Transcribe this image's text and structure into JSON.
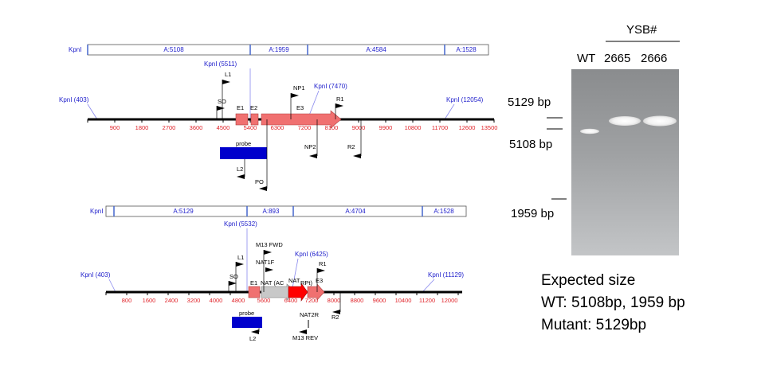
{
  "map1": {
    "enzyme_label": "KpnI",
    "fragments": [
      "A:5108",
      "A:1959",
      "A:4584",
      "A:1528"
    ],
    "site_left": "KpnI (403)",
    "site_a": "KpnI (5511)",
    "site_b": "KpnI (7470)",
    "site_right": "KpnI (12054)",
    "ticks": [
      "900",
      "1800",
      "2700",
      "3600",
      "4500",
      "5400",
      "6300",
      "7200",
      "8100",
      "9000",
      "9900",
      "10800",
      "11700",
      "12600",
      "13500"
    ],
    "features": [
      "E1",
      "E2",
      "E3"
    ],
    "probe": "probe",
    "primers": [
      "L1",
      "SO",
      "NP1",
      "R1",
      "NP2",
      "R2",
      "L2",
      "PO"
    ]
  },
  "map2": {
    "enzyme_label": "KpnI",
    "fragments": [
      "A:5129",
      "A:893",
      "A:4704",
      "A:1528"
    ],
    "site_left": "KpnI (403)",
    "site_a": "KpnI (5532)",
    "site_b": "KpnI (6425)",
    "site_right": "KpnI (11129)",
    "ticks": [
      "800",
      "1600",
      "2400",
      "3200",
      "4000",
      "4800",
      "5600",
      "6400",
      "7200",
      "8000",
      "8800",
      "9600",
      "10400",
      "11200",
      "12000"
    ],
    "features": [
      "E1",
      "NAT (AC",
      "NAT",
      "RPt)",
      "E3"
    ],
    "probe": "probe",
    "primers": [
      "M13 FWD",
      "NAT1F",
      "L1",
      "SO",
      "R1",
      "NAT2R",
      "M13 REV",
      "R2",
      "L2"
    ]
  },
  "gel": {
    "group": "YSB#",
    "lanes": [
      "WT",
      "2665",
      "2666"
    ],
    "markers": [
      "5129 bp",
      "5108 bp",
      "1959 bp"
    ]
  },
  "expected": {
    "title": "Expected size",
    "wt": "WT: 5108bp, 1959 bp",
    "mutant": "Mutant: 5129bp"
  }
}
